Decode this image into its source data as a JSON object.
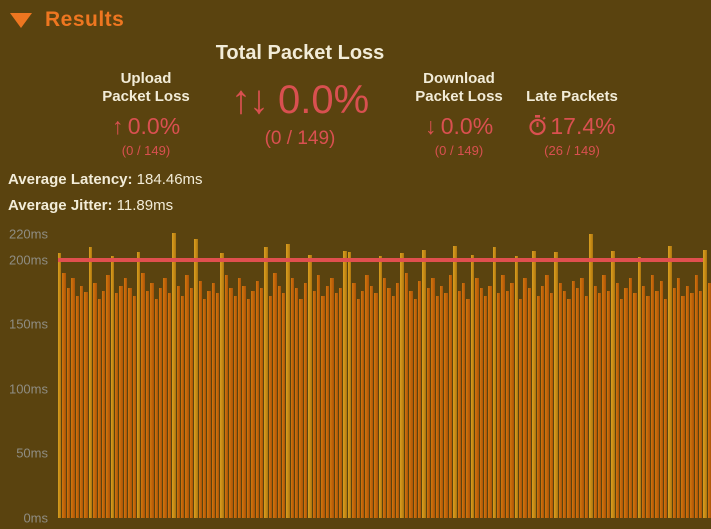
{
  "header": {
    "title": "Results",
    "accent_color": "#ee7620"
  },
  "summary": {
    "total": {
      "title": "Total Packet Loss",
      "icon": "↑↓",
      "value": "0.0%",
      "detail": "(0 / 149)"
    },
    "upload": {
      "label_line1": "Upload",
      "label_line2": "Packet Loss",
      "icon": "↑",
      "value": "0.0%",
      "detail": "(0 / 149)"
    },
    "download": {
      "label_line1": "Download",
      "label_line2": "Packet Loss",
      "icon": "↓",
      "value": "0.0%",
      "detail": "(0 / 149)"
    },
    "late": {
      "label": "Late Packets",
      "icon_name": "stopwatch-icon",
      "value": "17.4%",
      "detail": "(26 / 149)"
    }
  },
  "averages": {
    "latency_label": "Average Latency:",
    "latency_value": "184.46ms",
    "jitter_label": "Average Jitter:",
    "jitter_value": "11.89ms"
  },
  "colors": {
    "background": "#5a430f",
    "accent_orange": "#ee7620",
    "text_white": "#f2ecd8",
    "stat_red": "#d95050",
    "axis_gray": "#8f8d83",
    "bar_orange": "#c06208",
    "bar_late_gold": "#c68a15",
    "threshold_red": "#e04f4f"
  },
  "chart_data": {
    "type": "bar",
    "title": "Per-packet latency",
    "xlabel": "",
    "ylabel": "ms",
    "ylim": [
      0,
      227
    ],
    "grid": false,
    "legend": false,
    "y_ticks": [
      "220ms",
      "200ms",
      "150ms",
      "100ms",
      "50ms",
      "0ms"
    ],
    "late_threshold": 200,
    "threshold_line": {
      "value": 200,
      "color": "#e04f4f"
    },
    "num_packets": 149,
    "late_count": 26,
    "values": [
      205,
      190,
      178,
      186,
      172,
      180,
      175,
      210,
      182,
      170,
      176,
      188,
      203,
      174,
      180,
      186,
      178,
      172,
      206,
      190,
      176,
      182,
      170,
      178,
      186,
      174,
      221,
      180,
      172,
      188,
      178,
      216,
      184,
      170,
      176,
      182,
      174,
      205,
      188,
      178,
      172,
      186,
      180,
      170,
      176,
      184,
      178,
      210,
      172,
      190,
      180,
      174,
      212,
      186,
      178,
      170,
      182,
      204,
      176,
      188,
      172,
      180,
      186,
      174,
      178,
      207,
      206,
      182,
      170,
      176,
      188,
      180,
      174,
      203,
      186,
      178,
      172,
      182,
      205,
      190,
      176,
      170,
      184,
      208,
      178,
      186,
      172,
      180,
      174,
      188,
      211,
      176,
      182,
      170,
      204,
      186,
      178,
      172,
      180,
      210,
      174,
      188,
      176,
      182,
      203,
      170,
      186,
      178,
      207,
      172,
      180,
      188,
      174,
      206,
      182,
      176,
      170,
      184,
      178,
      186,
      172,
      220,
      180,
      174,
      188,
      176,
      207,
      182,
      170,
      178,
      186,
      174,
      202,
      180,
      172,
      188,
      176,
      184,
      170,
      211,
      178,
      186,
      172,
      180,
      174,
      188,
      176,
      208,
      182
    ]
  }
}
